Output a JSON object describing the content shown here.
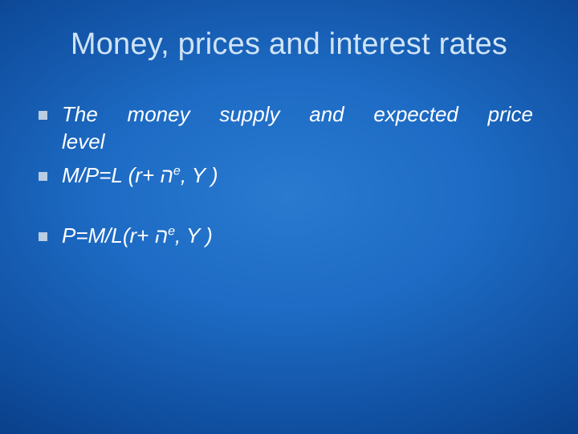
{
  "slide": {
    "background_gradient_center": "#2a7ad0",
    "background_gradient_edge": "#052b64",
    "title_color": "#cfe3f7",
    "text_color": "#ffffff",
    "bullet_color": "#b9cde3",
    "title_fontsize": 38,
    "body_fontsize": 26,
    "font_family": "Arial"
  },
  "title": "Money, prices and interest rates",
  "bullets": [
    {
      "text_a": "The money supply and expected price",
      "text_b": "level",
      "has_sup": false,
      "gap_before": false
    },
    {
      "text_a": "M/P=L (r+ ה",
      "sup": "e",
      "text_b": ", Y )",
      "has_sup": true,
      "gap_before": false
    },
    {
      "text_a": "P=M/L(r+ ה",
      "sup": "e",
      "text_b": ", Y )",
      "has_sup": true,
      "gap_before": true
    }
  ]
}
